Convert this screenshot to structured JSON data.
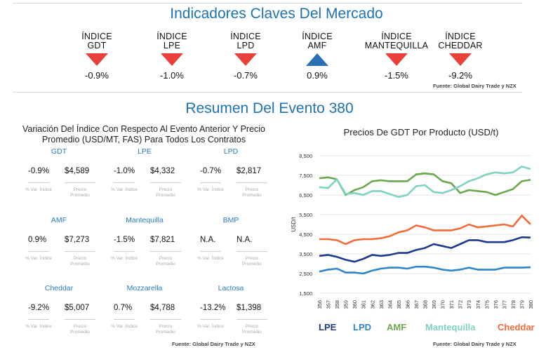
{
  "header": {
    "title": "Indicadores Claves Del Mercado"
  },
  "indicators": [
    {
      "line1": "ÍNDICE",
      "line2": "GDT",
      "direction": "down",
      "value": "-0.9%"
    },
    {
      "line1": "ÍNDICE",
      "line2": "LPE",
      "direction": "down",
      "value": "-1.0%"
    },
    {
      "line1": "ÍNDICE",
      "line2": "LPD",
      "direction": "down",
      "value": "-0.7%"
    },
    {
      "line1": "ÍNDICE",
      "line2": "AMF",
      "direction": "up",
      "value": "0.9%"
    },
    {
      "line1": "ÍNDICE",
      "line2": "MANTEQUILLA",
      "direction": "down",
      "value": "-1.5%"
    },
    {
      "line1": "ÍNDICE",
      "line2": "CHEDDAR",
      "direction": "down",
      "value": "-9.2%"
    }
  ],
  "source_top": "Fuente: Global Dairy Trade y NZX",
  "section2": {
    "title": "Resumen Del Evento 380"
  },
  "grid_title": "Variación Del Índice Con Respecto Al Evento Anterior Y Precio Promedio (USD/MT, FAS) Para Todos Los Contratos",
  "grid_labels": {
    "var": "% Var. Índice",
    "price": "Precio Promedio"
  },
  "grid": [
    {
      "name": "GDT",
      "var": "-0.9%",
      "price": "$4,589"
    },
    {
      "name": "LPE",
      "var": "-1.0%",
      "price": "$4,332"
    },
    {
      "name": "LPD",
      "var": "-0.7%",
      "price": "$2,817"
    },
    {
      "name": "AMF",
      "var": "0.9%",
      "price": "$7,273"
    },
    {
      "name": "Mantequilla",
      "var": "-1.5%",
      "price": "$7,821"
    },
    {
      "name": "BMP",
      "var": "N.A.",
      "price": "N.A."
    },
    {
      "name": "Cheddar",
      "var": "-9.2%",
      "price": "$5,007"
    },
    {
      "name": "Mozzarella",
      "var": "0.7%",
      "price": "$4,788"
    },
    {
      "name": "Lactosa",
      "var": "-13.2%",
      "price": "$1,398"
    }
  ],
  "source_grid": "Fuente:  Global Dairy Trade y NZX",
  "source_chart": "Fuente:  Global Dairy Trade y NZX",
  "chart_data": {
    "type": "line",
    "title": "Precios De GDT Por Producto (USD/t)",
    "xlabel": "",
    "ylabel": "USD/t",
    "ylim": [
      1500,
      8500
    ],
    "yticks": [
      "8,500",
      "7,500",
      "6,500",
      "5,500",
      "4,500",
      "3,500",
      "2,500",
      "1,500"
    ],
    "ytick_values": [
      8500,
      7500,
      6500,
      5500,
      4500,
      3500,
      2500,
      1500
    ],
    "x": [
      "356",
      "357",
      "358",
      "359",
      "360",
      "361",
      "362",
      "363",
      "364",
      "365",
      "366",
      "367",
      "368",
      "369",
      "370",
      "371",
      "372",
      "373",
      "374",
      "375",
      "376",
      "377",
      "378",
      "379",
      "380"
    ],
    "legend_position": "bottom",
    "grid": true,
    "series": [
      {
        "name": "LPE",
        "color": "#1f3a8a",
        "values": [
          3400,
          3450,
          3350,
          3200,
          3100,
          3250,
          3450,
          3400,
          3450,
          3550,
          3550,
          3700,
          3800,
          4000,
          3900,
          3800,
          4000,
          4200,
          4200,
          4100,
          4100,
          4100,
          4200,
          4350,
          4332
        ]
      },
      {
        "name": "LPD",
        "color": "#2e86c9",
        "values": [
          2600,
          2700,
          2750,
          2550,
          2550,
          2500,
          2650,
          2750,
          2800,
          2800,
          2750,
          2850,
          2850,
          2800,
          2700,
          2650,
          2700,
          2800,
          2700,
          2700,
          2700,
          2800,
          2800,
          2800,
          2817
        ]
      },
      {
        "name": "AMF",
        "color": "#6aa84f",
        "values": [
          7350,
          7400,
          7300,
          6500,
          6750,
          6900,
          7200,
          7250,
          7200,
          7200,
          7200,
          7550,
          7600,
          7550,
          7200,
          7100,
          6600,
          6750,
          6700,
          6650,
          6500,
          6650,
          6800,
          7200,
          7273
        ]
      },
      {
        "name": "Mantequilla",
        "color": "#7fd3c2",
        "values": [
          6900,
          6850,
          7300,
          6550,
          6600,
          6500,
          6700,
          6700,
          6550,
          6400,
          6500,
          6950,
          7000,
          6650,
          6600,
          6750,
          6950,
          7200,
          7350,
          7550,
          7650,
          7600,
          7650,
          7950,
          7821
        ]
      },
      {
        "name": "Cheddar",
        "color": "#f26b3a",
        "values": [
          4250,
          4250,
          4200,
          4000,
          4200,
          4250,
          4250,
          4300,
          4400,
          4600,
          4700,
          4950,
          4850,
          4700,
          4700,
          4700,
          4800,
          5000,
          4850,
          4900,
          4950,
          5000,
          4900,
          5450,
          5007
        ]
      }
    ]
  }
}
